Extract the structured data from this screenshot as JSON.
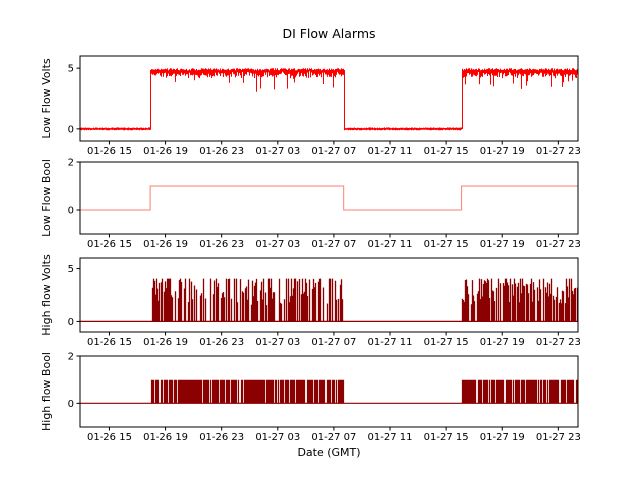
{
  "title": "DI Flow Alarms",
  "xlabel": "Date (GMT)",
  "chart_data": {
    "type": "line",
    "title": "DI Flow Alarms",
    "xlabel": "Date (GMT)",
    "x_unit": "hours since 01-26 00:00 GMT",
    "xlim": [
      12.9,
      48.4
    ],
    "xticks": [
      15,
      19,
      23,
      27,
      31,
      35,
      39,
      43,
      47
    ],
    "xtick_labels": [
      "01-26 15",
      "01-26 19",
      "01-26 23",
      "01-27 03",
      "01-27 07",
      "01-27 11",
      "01-27 15",
      "01-27 19",
      "01-27 23"
    ],
    "alarm_windows_hours": [
      [
        17.9,
        31.7
      ],
      [
        40.1,
        48.4
      ]
    ],
    "subplots": [
      {
        "ylabel": "Low Flow Volts",
        "color": "#ff0000",
        "style": "noisy-analog",
        "ylim": [
          -1,
          6
        ],
        "yticks": [
          0,
          5
        ],
        "inactive_level": 0,
        "active_level": 4.85,
        "description": "~0 V outside alarm windows; noisy band ~4.4-5.0 V inside alarm windows"
      },
      {
        "ylabel": "Low Flow Bool",
        "color": "#fa8072",
        "style": "square",
        "ylim": [
          -1,
          2
        ],
        "yticks": [
          0,
          2
        ],
        "inactive_level": 0,
        "active_level": 1,
        "description": "boolean 0/1 square wave following the alarm windows"
      },
      {
        "ylabel": "High flow Volts",
        "color": "#8b0000",
        "style": "burst-analog",
        "ylim": [
          -1,
          6
        ],
        "yticks": [
          0,
          5
        ],
        "inactive_level": 0,
        "active_spike_range": [
          1.4,
          4.0
        ],
        "description": "0 V baseline with dense spikes up to ~4 V during alarm windows"
      },
      {
        "ylabel": "High flow Bool",
        "color": "#8b0000",
        "style": "burst-bool",
        "ylim": [
          -1,
          2
        ],
        "yticks": [
          0,
          2
        ],
        "inactive_level": 0,
        "active_level": 1,
        "description": "dense boolean 0/1 bursts during alarm windows"
      }
    ]
  }
}
